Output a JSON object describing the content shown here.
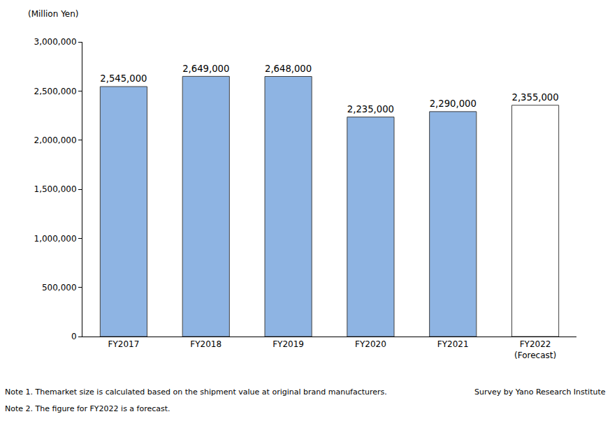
{
  "chart_data": {
    "type": "bar",
    "y_label": "(Million Yen)",
    "categories": [
      "FY2017",
      "FY2018",
      "FY2019",
      "FY2020",
      "FY2021",
      "FY2022\n(Forecast)"
    ],
    "values": [
      2545000,
      2649000,
      2648000,
      2235000,
      2290000,
      2355000
    ],
    "value_labels": [
      "2,545,000",
      "2,649,000",
      "2,648,000",
      "2,235,000",
      "2,290,000",
      "2,355,000"
    ],
    "data_labels": true,
    "colors": [
      "#8eb4e3",
      "#8eb4e3",
      "#8eb4e3",
      "#8eb4e3",
      "#8eb4e3",
      "#ffffff"
    ],
    "ylim": [
      0,
      3000000
    ],
    "yticks": [
      0,
      {
        "value": 500000,
        "label": "500,000"
      },
      {
        "value": 1000000,
        "label": "1,000,000"
      },
      {
        "value": 1500000,
        "label": "1,500,000"
      },
      {
        "value": 2000000,
        "label": "2,000,000"
      },
      {
        "value": 2500000,
        "label": "2,500,000"
      },
      {
        "value": 3000000,
        "label": "3,000,000"
      }
    ],
    "grid": false,
    "notes": [
      "Note 1. Themarket size is calculated based on the shipment value at original brand manufacturers.",
      "Note 2. The figure for FY2022 is a forecast."
    ],
    "source": "Survey by Yano Research Institute"
  }
}
